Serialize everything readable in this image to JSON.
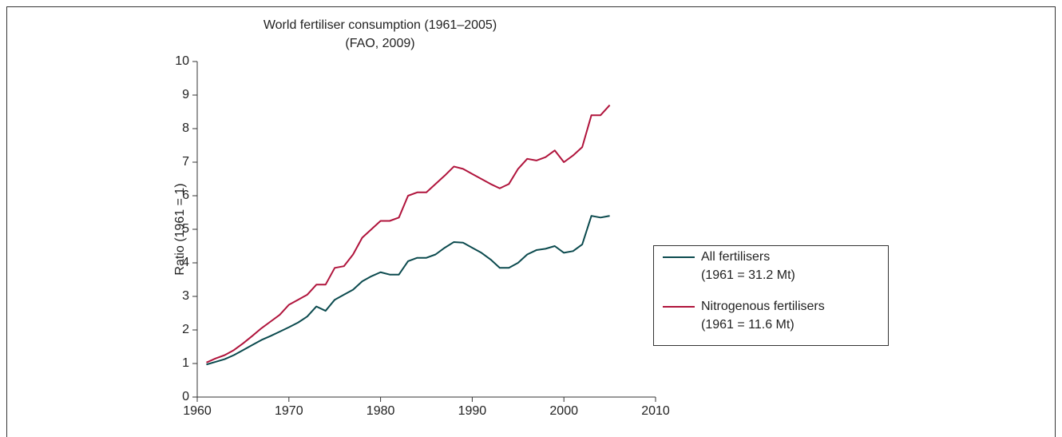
{
  "chart_data": {
    "type": "line",
    "title": "World fertiliser consumption (1961–2005)",
    "subtitle": "(FAO, 2009)",
    "y_label": "Ratio (1961 = 1)",
    "x": [
      1961,
      1962,
      1963,
      1964,
      1965,
      1966,
      1967,
      1968,
      1969,
      1970,
      1971,
      1972,
      1973,
      1974,
      1975,
      1976,
      1977,
      1978,
      1979,
      1980,
      1981,
      1982,
      1983,
      1984,
      1985,
      1986,
      1987,
      1988,
      1989,
      1990,
      1991,
      1992,
      1993,
      1994,
      1995,
      1996,
      1997,
      1998,
      1999,
      2000,
      2001,
      2002,
      2003,
      2004,
      2005
    ],
    "series": [
      {
        "name": "All fertilisers",
        "legend_note": "(1961 = 31.2 Mt)",
        "color": "#0b4a4e",
        "values": [
          0.97,
          1.05,
          1.13,
          1.25,
          1.4,
          1.55,
          1.7,
          1.82,
          1.95,
          2.08,
          2.22,
          2.4,
          2.7,
          2.57,
          2.9,
          3.05,
          3.2,
          3.45,
          3.6,
          3.72,
          3.65,
          3.65,
          4.05,
          4.15,
          4.15,
          4.25,
          4.45,
          4.62,
          4.6,
          4.45,
          4.3,
          4.1,
          3.85,
          3.85,
          4.0,
          4.25,
          4.38,
          4.42,
          4.5,
          4.3,
          4.35,
          4.55,
          5.4,
          5.35,
          5.4
        ]
      },
      {
        "name": "Nitrogenous fertilisers",
        "legend_note": "(1961 = 11.6 Mt)",
        "color": "#b0143c",
        "values": [
          1.03,
          1.15,
          1.25,
          1.4,
          1.6,
          1.82,
          2.05,
          2.25,
          2.45,
          2.75,
          2.9,
          3.05,
          3.35,
          3.35,
          3.85,
          3.9,
          4.25,
          4.75,
          5.0,
          5.25,
          5.25,
          5.35,
          6.0,
          6.1,
          6.1,
          6.35,
          6.6,
          6.87,
          6.8,
          6.65,
          6.5,
          6.35,
          6.22,
          6.35,
          6.8,
          7.1,
          7.05,
          7.15,
          7.35,
          7.0,
          7.2,
          7.45,
          8.4,
          8.4,
          8.7
        ]
      }
    ],
    "xlim": [
      1960,
      2010
    ],
    "xticks": [
      1960,
      1970,
      1980,
      1990,
      2000,
      2010
    ],
    "ylim": [
      0,
      10
    ],
    "yticks": [
      0,
      1,
      2,
      3,
      4,
      5,
      6,
      7,
      8,
      9,
      10
    ],
    "legend": "right"
  }
}
